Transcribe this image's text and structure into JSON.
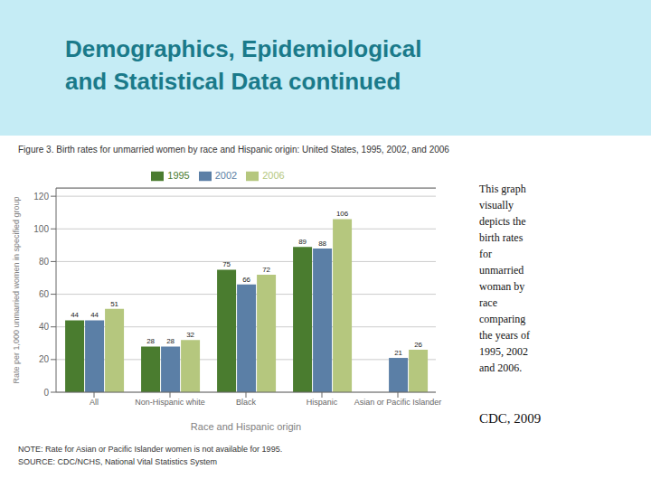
{
  "chart_data": {
    "type": "bar",
    "title": "Demographics, Epidemiological\nand Statistical Data continued",
    "subtitle": "Figure 3.  Birth rates for unmarried women by race and Hispanic origin: United States, 1995, 2002, and 2006",
    "categories": [
      "All",
      "Non-Hispanic white",
      "Black",
      "Hispanic",
      "Asian or Pacific Islander"
    ],
    "series": [
      {
        "name": "1995",
        "color": "#4a7c2f",
        "values": [
          44,
          28,
          75,
          89,
          null
        ]
      },
      {
        "name": "2002",
        "color": "#5b7fa6",
        "values": [
          44,
          28,
          66,
          88,
          21
        ]
      },
      {
        "name": "2006",
        "color": "#b5c77e",
        "values": [
          51,
          32,
          72,
          106,
          26
        ]
      }
    ],
    "xlabel": "Race and Hispanic origin",
    "ylabel": "Rate per 1,000 unmarried women in specified group",
    "ylim": [
      0,
      125
    ],
    "yticks": [
      0,
      20,
      40,
      60,
      80,
      100,
      120
    ],
    "grid": true,
    "legend": "top",
    "data_labels": true,
    "annotations": [
      "This graph\nvisually\ndepicts the\nbirth rates\nfor\nunmarried\nwoman by\nrace\ncomparing\nthe years of\n1995, 2002\nand 2006.",
      "CDC, 2009",
      "NOTE: Rate for Asian or Pacific Islander women is not available for 1995.",
      "SOURCE: CDC/NCHS, National Vital Statistics System"
    ]
  }
}
